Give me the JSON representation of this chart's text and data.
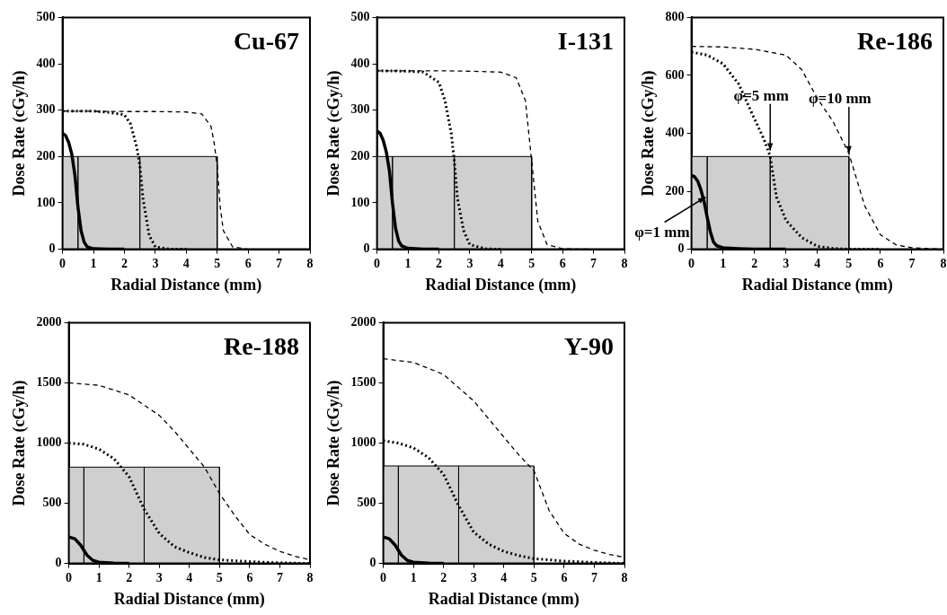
{
  "chart_data": [
    {
      "type": "line",
      "title": "Cu-67",
      "xlabel": "Radial Distance (mm)",
      "ylabel": "Dose Rate (cGy/h)",
      "xlim": [
        0,
        8
      ],
      "xticks": [
        0,
        1,
        2,
        3,
        4,
        5,
        6,
        7,
        8
      ],
      "ylim": [
        0,
        500
      ],
      "yticks": [
        0,
        100,
        200,
        300,
        400,
        500
      ],
      "grid": false,
      "legend": false,
      "marker": "none",
      "series": [
        {
          "type": "area",
          "color": "#cfcfcf",
          "x": [
            0,
            0,
            0.5,
            0.5,
            0.5,
            2.5,
            2.5,
            2.5,
            5,
            5
          ],
          "values": [
            0,
            200,
            200,
            0,
            200,
            200,
            0,
            200,
            200,
            0
          ]
        },
        {
          "type": "line",
          "line_style": "solid",
          "color": "#000000",
          "x": [
            0,
            0.1,
            0.2,
            0.3,
            0.4,
            0.5,
            0.6,
            0.7,
            0.8,
            1,
            1.5,
            2
          ],
          "values": [
            250,
            245,
            230,
            205,
            160,
            90,
            40,
            15,
            5,
            1,
            0,
            0
          ]
        },
        {
          "type": "line",
          "line_style": "dotted",
          "color": "#000000",
          "x": [
            0,
            1,
            1.5,
            2,
            2.2,
            2.4,
            2.5,
            2.6,
            2.8,
            3,
            3.5,
            4
          ],
          "values": [
            298,
            298,
            295,
            290,
            270,
            220,
            180,
            110,
            30,
            5,
            0,
            0
          ]
        },
        {
          "type": "line",
          "line_style": "dashed",
          "color": "#000000",
          "x": [
            0,
            2,
            3,
            4,
            4.5,
            4.8,
            4.9,
            5,
            5.1,
            5.2,
            5.5,
            6
          ],
          "values": [
            298,
            297,
            297,
            296,
            292,
            265,
            230,
            180,
            90,
            40,
            5,
            0
          ]
        }
      ]
    },
    {
      "type": "line",
      "title": "I-131",
      "xlabel": "Radial Distance (mm)",
      "ylabel": "Dose Rate (cGy/h)",
      "xlim": [
        0,
        8
      ],
      "xticks": [
        0,
        1,
        2,
        3,
        4,
        5,
        6,
        7,
        8
      ],
      "ylim": [
        0,
        500
      ],
      "yticks": [
        0,
        100,
        200,
        300,
        400,
        500
      ],
      "grid": false,
      "legend": false,
      "marker": "none",
      "series": [
        {
          "type": "area",
          "color": "#cfcfcf",
          "x": [
            0,
            0,
            0.5,
            0.5,
            0.5,
            2.5,
            2.5,
            2.5,
            5,
            5
          ],
          "values": [
            0,
            200,
            200,
            0,
            200,
            200,
            0,
            200,
            200,
            0
          ]
        },
        {
          "type": "line",
          "line_style": "solid",
          "color": "#000000",
          "x": [
            0,
            0.1,
            0.2,
            0.3,
            0.4,
            0.5,
            0.6,
            0.7,
            0.8,
            1,
            1.5,
            2
          ],
          "values": [
            255,
            250,
            235,
            210,
            170,
            100,
            45,
            18,
            7,
            2,
            0,
            0
          ]
        },
        {
          "type": "line",
          "line_style": "dotted",
          "color": "#000000",
          "x": [
            0,
            1,
            1.5,
            2,
            2.2,
            2.4,
            2.5,
            2.6,
            2.8,
            3,
            3.5,
            4
          ],
          "values": [
            385,
            384,
            382,
            360,
            320,
            250,
            190,
            110,
            40,
            10,
            1,
            0
          ]
        },
        {
          "type": "line",
          "line_style": "dashed",
          "color": "#000000",
          "x": [
            0,
            2,
            3,
            4,
            4.5,
            4.8,
            5,
            5.2,
            5.5,
            6,
            7
          ],
          "values": [
            385,
            385,
            384,
            382,
            370,
            320,
            190,
            60,
            10,
            1,
            0
          ]
        }
      ]
    },
    {
      "type": "line",
      "title": "Re-186",
      "xlabel": "Radial Distance (mm)",
      "ylabel": "Dose Rate (cGy/h)",
      "xlim": [
        0,
        8
      ],
      "xticks": [
        0,
        1,
        2,
        3,
        4,
        5,
        6,
        7,
        8
      ],
      "ylim": [
        0,
        800
      ],
      "yticks": [
        0,
        200,
        400,
        600,
        800
      ],
      "grid": false,
      "legend": false,
      "marker": "none",
      "annotations": [
        {
          "text": "φ=10 mm",
          "x": 5,
          "y": 330
        },
        {
          "text": "φ=5 mm",
          "x": 2.5,
          "y": 340
        },
        {
          "text": "φ=1 mm",
          "x": 0.45,
          "y": 180
        }
      ],
      "series": [
        {
          "type": "area",
          "color": "#cfcfcf",
          "x": [
            0,
            0,
            0.5,
            0.5,
            0.5,
            2.5,
            2.5,
            2.5,
            5,
            5
          ],
          "values": [
            0,
            320,
            320,
            0,
            320,
            320,
            0,
            320,
            320,
            0
          ]
        },
        {
          "type": "line",
          "line_style": "solid",
          "color": "#000000",
          "x": [
            0,
            0.1,
            0.2,
            0.3,
            0.4,
            0.5,
            0.6,
            0.7,
            0.8,
            1,
            1.5,
            2,
            3
          ],
          "values": [
            255,
            250,
            235,
            205,
            165,
            110,
            60,
            25,
            12,
            5,
            2,
            0,
            0
          ]
        },
        {
          "type": "line",
          "line_style": "dotted",
          "color": "#000000",
          "x": [
            0,
            0.5,
            1,
            1.5,
            2,
            2.3,
            2.5,
            2.7,
            3,
            3.5,
            4,
            4.5,
            5,
            6
          ],
          "values": [
            680,
            670,
            640,
            570,
            450,
            380,
            320,
            180,
            100,
            40,
            10,
            3,
            0,
            0
          ]
        },
        {
          "type": "line",
          "line_style": "dashed",
          "color": "#000000",
          "x": [
            0,
            1,
            2,
            3,
            3.5,
            4,
            4.5,
            5,
            5.5,
            6,
            6.5,
            7,
            8
          ],
          "values": [
            700,
            698,
            690,
            670,
            620,
            520,
            440,
            330,
            150,
            50,
            15,
            5,
            0
          ]
        }
      ]
    },
    {
      "type": "line",
      "title": "Re-188",
      "xlabel": "Radial Distance (mm)",
      "ylabel": "Dose Rate (cGy/h)",
      "xlim": [
        0,
        8
      ],
      "xticks": [
        0,
        1,
        2,
        3,
        4,
        5,
        6,
        7,
        8
      ],
      "ylim": [
        0,
        2000
      ],
      "yticks": [
        0,
        500,
        1000,
        1500,
        2000
      ],
      "grid": false,
      "legend": false,
      "marker": "none",
      "series": [
        {
          "type": "area",
          "color": "#cfcfcf",
          "x": [
            0,
            0,
            0.5,
            0.5,
            0.5,
            2.5,
            2.5,
            2.5,
            5,
            5
          ],
          "values": [
            0,
            800,
            800,
            0,
            800,
            800,
            0,
            800,
            800,
            0
          ]
        },
        {
          "type": "line",
          "line_style": "solid",
          "color": "#000000",
          "x": [
            0,
            0.2,
            0.4,
            0.6,
            0.8,
            1,
            1.5,
            2
          ],
          "values": [
            220,
            205,
            150,
            70,
            25,
            10,
            3,
            0
          ]
        },
        {
          "type": "line",
          "line_style": "dotted",
          "color": "#000000",
          "x": [
            0,
            0.5,
            1,
            1.5,
            2,
            2.5,
            3,
            3.5,
            4,
            4.5,
            5,
            6,
            7,
            8
          ],
          "values": [
            1000,
            990,
            950,
            870,
            720,
            450,
            250,
            140,
            90,
            50,
            30,
            15,
            5,
            0
          ]
        },
        {
          "type": "line",
          "line_style": "dashed",
          "color": "#000000",
          "x": [
            0,
            1,
            2,
            3,
            3.5,
            4,
            4.5,
            5,
            5.5,
            6,
            6.5,
            7,
            7.5,
            8
          ],
          "values": [
            1500,
            1480,
            1400,
            1230,
            1100,
            950,
            800,
            580,
            400,
            240,
            160,
            100,
            60,
            30
          ]
        }
      ]
    },
    {
      "type": "line",
      "title": "Y-90",
      "xlabel": "Radial Distance (mm)",
      "ylabel": "Dose Rate (cGy/h)",
      "xlim": [
        0,
        8
      ],
      "xticks": [
        0,
        1,
        2,
        3,
        4,
        5,
        6,
        7,
        8
      ],
      "ylim": [
        0,
        2000
      ],
      "yticks": [
        0,
        500,
        1000,
        1500,
        2000
      ],
      "grid": false,
      "legend": false,
      "marker": "none",
      "series": [
        {
          "type": "area",
          "color": "#cfcfcf",
          "x": [
            0,
            0,
            0.5,
            0.5,
            0.5,
            2.5,
            2.5,
            2.5,
            5,
            5
          ],
          "values": [
            0,
            810,
            810,
            0,
            810,
            810,
            0,
            810,
            810,
            0
          ]
        },
        {
          "type": "line",
          "line_style": "solid",
          "color": "#000000",
          "x": [
            0,
            0.2,
            0.4,
            0.6,
            0.8,
            1,
            1.5,
            2
          ],
          "values": [
            220,
            205,
            150,
            70,
            25,
            10,
            3,
            0
          ]
        },
        {
          "type": "line",
          "line_style": "dotted",
          "color": "#000000",
          "x": [
            0,
            0.5,
            1,
            1.5,
            2,
            2.5,
            3,
            3.5,
            4,
            4.5,
            5,
            6,
            7,
            8
          ],
          "values": [
            1020,
            1000,
            960,
            880,
            740,
            480,
            260,
            160,
            100,
            65,
            40,
            20,
            8,
            0
          ]
        },
        {
          "type": "line",
          "line_style": "dashed",
          "color": "#000000",
          "x": [
            0,
            1,
            2,
            3,
            3.5,
            4,
            4.5,
            5,
            5.5,
            6,
            6.5,
            7,
            7.5,
            8
          ],
          "values": [
            1700,
            1670,
            1570,
            1350,
            1200,
            1050,
            900,
            770,
            440,
            250,
            160,
            110,
            75,
            50
          ]
        }
      ]
    }
  ]
}
